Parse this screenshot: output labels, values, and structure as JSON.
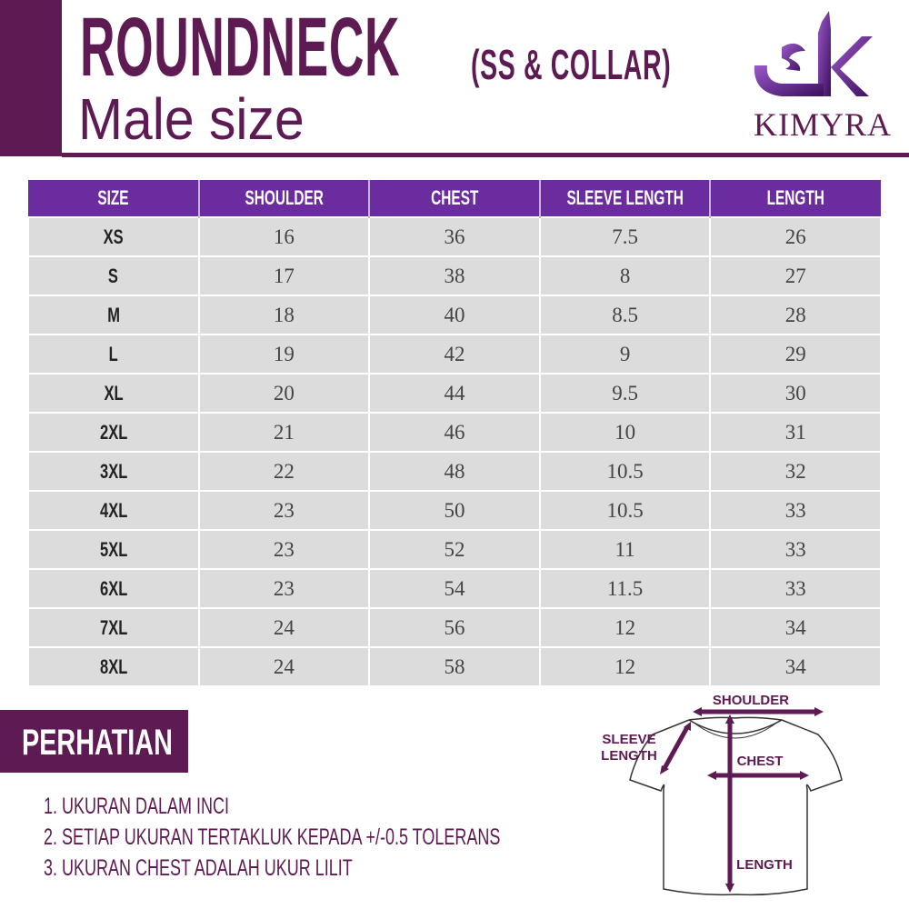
{
  "header": {
    "title": "ROUNDNECK",
    "subtitle": "(SS & COLLAR)",
    "tagline": "Male size"
  },
  "logo": {
    "brand": "KIMYRA",
    "glyph": "ك"
  },
  "colors": {
    "primary": "#5e1a52",
    "table_header": "#6a2c9e",
    "cell": "#dcdcdc"
  },
  "table": {
    "columns": [
      "SIZE",
      "SHOULDER",
      "CHEST",
      "SLEEVE LENGTH",
      "LENGTH"
    ],
    "rows": [
      [
        "XS",
        "16",
        "36",
        "7.5",
        "26"
      ],
      [
        "S",
        "17",
        "38",
        "8",
        "27"
      ],
      [
        "M",
        "18",
        "40",
        "8.5",
        "28"
      ],
      [
        "L",
        "19",
        "42",
        "9",
        "29"
      ],
      [
        "XL",
        "20",
        "44",
        "9.5",
        "30"
      ],
      [
        "2XL",
        "21",
        "46",
        "10",
        "31"
      ],
      [
        "3XL",
        "22",
        "48",
        "10.5",
        "32"
      ],
      [
        "4XL",
        "23",
        "50",
        "10.5",
        "33"
      ],
      [
        "5XL",
        "23",
        "52",
        "11",
        "33"
      ],
      [
        "6XL",
        "23",
        "54",
        "11.5",
        "33"
      ],
      [
        "7XL",
        "24",
        "56",
        "12",
        "34"
      ],
      [
        "8XL",
        "24",
        "58",
        "12",
        "34"
      ]
    ]
  },
  "notice": {
    "title": "PERHATIAN",
    "items": [
      "1. UKURAN DALAM INCI",
      "2. SETIAP UKURAN TERTAKLUK KEPADA +/-0.5 TOLERANS",
      "3. UKURAN CHEST ADALAH UKUR LILIT"
    ]
  },
  "diagram": {
    "shoulder": "SHOULDER",
    "sleeve_1": "SLEEVE",
    "sleeve_2": "LENGTH",
    "chest": "CHEST",
    "length": "LENGTH"
  }
}
